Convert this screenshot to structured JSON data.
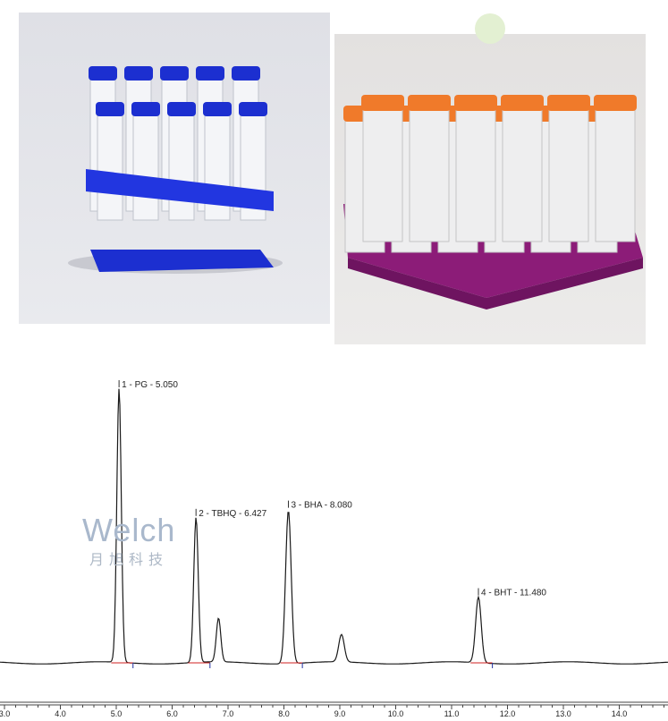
{
  "photos": [
    {
      "subject": "blue rack with capped centrifuge tubes"
    },
    {
      "subject": "purple rack with orange capped centrifuge tubes"
    }
  ],
  "watermark": {
    "brand": "Welch",
    "chinese": "月旭科技"
  },
  "colors": {
    "trace": "#1a1a1a",
    "baseline_marks": "#d02020",
    "integration_ticks": "#2030a0",
    "blue_rack": "#1c2fd0",
    "purple_rack": "#8c1c78",
    "orange_cap": "#f07a2a"
  },
  "chart_data": {
    "type": "line",
    "title": "",
    "xlabel": "",
    "ylabel": "",
    "xlim": [
      3.0,
      14.8
    ],
    "x_ticks": [
      "3.0",
      "4.0",
      "5.0",
      "6.0",
      "7.0",
      "8.0",
      "9.0",
      "10.0",
      "11.0",
      "12.0",
      "13.0",
      "14.0"
    ],
    "peaks": [
      {
        "label": "1 - PG - 5.050",
        "rt": 5.05,
        "height": 100
      },
      {
        "label": "2 - TBHQ - 6.427",
        "rt": 6.427,
        "height": 53
      },
      {
        "label": "",
        "rt": 6.83,
        "height": 16
      },
      {
        "label": "3 - BHA - 8.080",
        "rt": 8.08,
        "height": 56
      },
      {
        "label": "",
        "rt": 9.03,
        "height": 10
      },
      {
        "label": "4 - BHT - 11.480",
        "rt": 11.48,
        "height": 24
      }
    ]
  }
}
